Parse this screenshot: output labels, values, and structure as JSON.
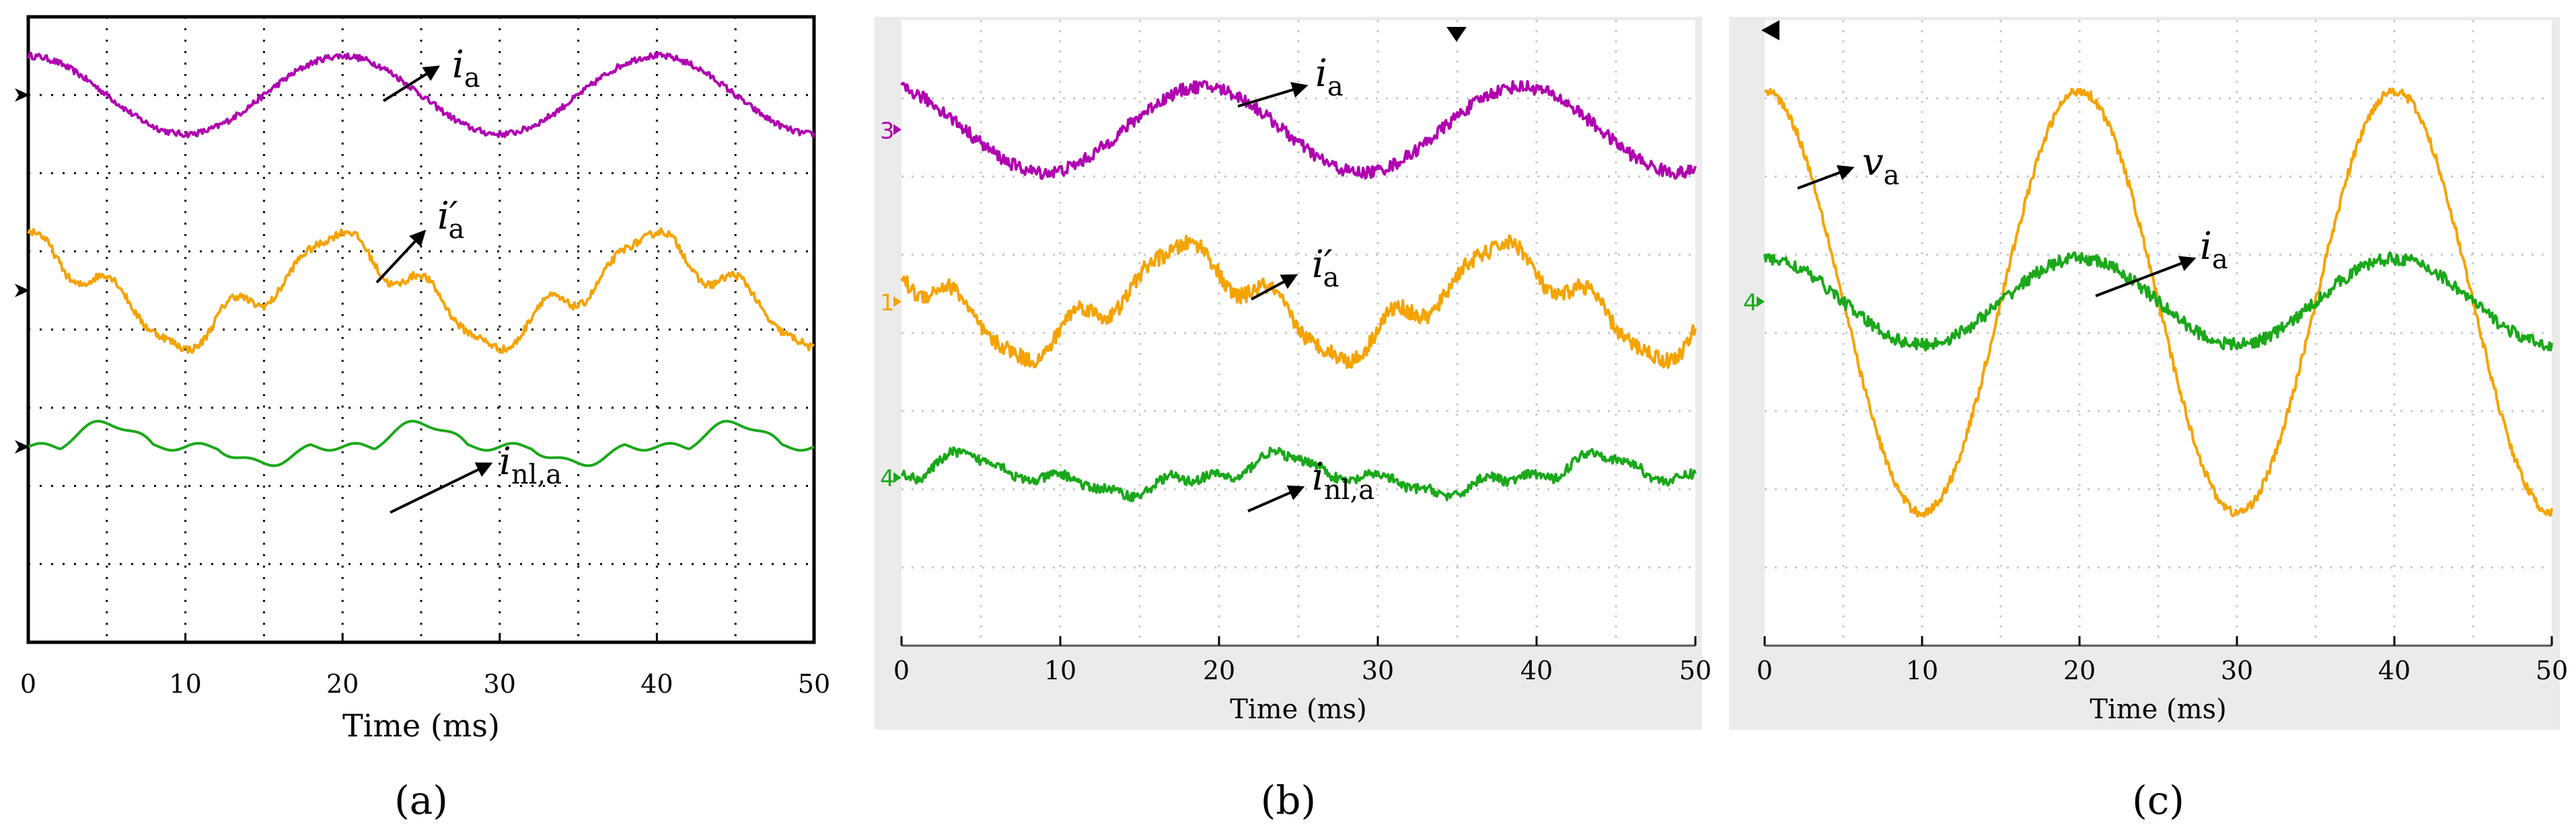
{
  "colors": {
    "ia": "#b000b0",
    "ia_prime": "#f5a300",
    "inl": "#1aa81a",
    "va": "#f5a300",
    "ia_c": "#1aa81a",
    "scope_bg": "#ebebeb"
  },
  "chart_data": [
    {
      "type": "line",
      "panel": "(a)",
      "xlabel": "Time (ms)",
      "xlim": [
        0,
        50
      ],
      "xticks": [
        "0",
        "10",
        "20",
        "30",
        "40",
        "50"
      ],
      "grid": true,
      "series": [
        {
          "name": "i_a",
          "label": "i",
          "sub": "a",
          "prime": false,
          "offset_div": 1.0,
          "amp_div": 0.5,
          "shape": "sine",
          "phase_ms": 0,
          "noise": 0.04
        },
        {
          "name": "i'_a",
          "label": "i",
          "sub": "a",
          "prime": true,
          "offset_div": 3.5,
          "amp_div": 0.8,
          "shape": "quasi",
          "phase_ms": 0,
          "noise": 0.05
        },
        {
          "name": "i_nl,a",
          "label": "i",
          "sub": "nl,a",
          "prime": false,
          "offset_div": 5.5,
          "amp_div": 0.3,
          "shape": "nonlinear",
          "phase_ms": 0,
          "noise": 0.0
        }
      ]
    },
    {
      "type": "line",
      "panel": "(b)",
      "xlabel": "Time (ms)",
      "xlim": [
        0,
        50
      ],
      "xticks": [
        "0",
        "10",
        "20",
        "30",
        "40",
        "50"
      ],
      "grid": true,
      "channels": [
        "3",
        "1",
        "4"
      ],
      "series": [
        {
          "name": "i_a",
          "label": "i",
          "sub": "a",
          "prime": false,
          "offset_div": 1.4,
          "amp_div": 0.55,
          "shape": "sine",
          "phase_ms": -1,
          "noise": 0.08
        },
        {
          "name": "i'_a",
          "label": "i",
          "sub": "a",
          "prime": true,
          "offset_div": 3.6,
          "amp_div": 0.8,
          "shape": "quasi",
          "phase_ms": -2,
          "noise": 0.1
        },
        {
          "name": "i_nl,a",
          "label": "i",
          "sub": "nl,a",
          "prime": false,
          "offset_div": 5.85,
          "amp_div": 0.3,
          "shape": "nonlinear",
          "phase_ms": -1,
          "noise": 0.06
        }
      ]
    },
    {
      "type": "line",
      "panel": "(c)",
      "xlabel": "Time (ms)",
      "xlim": [
        0,
        50
      ],
      "xticks": [
        "0",
        "10",
        "20",
        "30",
        "40",
        "50"
      ],
      "grid": true,
      "channels": [
        "4"
      ],
      "series": [
        {
          "name": "v_a",
          "label": "v",
          "sub": "a",
          "prime": false,
          "offset_div": 3.6,
          "amp_div": 2.7,
          "shape": "cos",
          "phase_ms": 0,
          "noise": 0.06
        },
        {
          "name": "i_a",
          "label": "i",
          "sub": "a",
          "prime": false,
          "offset_div": 3.6,
          "amp_div": 0.55,
          "shape": "sine",
          "phase_ms": 0,
          "noise": 0.08
        }
      ]
    }
  ]
}
